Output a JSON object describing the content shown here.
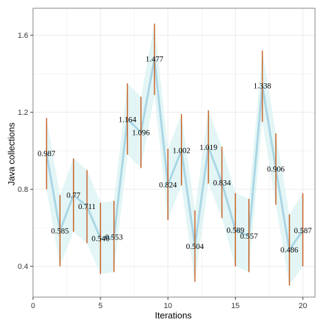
{
  "chart_data": {
    "type": "line",
    "title": "",
    "xlabel": "Iterations",
    "ylabel": "Java collections",
    "xlim": [
      0,
      20.9
    ],
    "ylim": [
      0.24,
      1.74
    ],
    "x_ticks": [
      0,
      5,
      10,
      15,
      20
    ],
    "y_ticks": [
      0.4,
      0.8,
      1.2,
      1.6
    ],
    "y_tick_labels": [
      "0.4",
      "0.8",
      "1.2",
      "1.6"
    ],
    "grid": true,
    "legend": "none",
    "colors": {
      "line": "#a9d6e5",
      "ribbon": "#d9f1f2",
      "error_bar": "#c8642a",
      "grid": "#e8e8e8",
      "frame": "#7f7f7f"
    },
    "series": [
      {
        "x": [
          1,
          2,
          3,
          4,
          5,
          6,
          7,
          8,
          9,
          10,
          11,
          12,
          13,
          14,
          15,
          16,
          17,
          18,
          19,
          20
        ],
        "values": [
          0.987,
          0.585,
          0.77,
          0.711,
          0.546,
          0.553,
          1.164,
          1.096,
          1.477,
          0.824,
          1.002,
          0.504,
          1.019,
          0.834,
          0.589,
          0.557,
          1.338,
          0.906,
          0.486,
          0.587
        ],
        "labels": [
          "0.987",
          "0.585",
          "0.77",
          "0.711",
          "0.546",
          "0.553",
          "1.164",
          "1.096",
          "1.477",
          "0.824",
          "1.002",
          "0.504",
          "1.019",
          "0.834",
          "0.589",
          "0.557",
          "1.338",
          "0.906",
          "0.486",
          "0.587"
        ],
        "lower": [
          0.8,
          0.4,
          0.58,
          0.52,
          0.36,
          0.37,
          0.98,
          0.91,
          1.29,
          0.64,
          0.82,
          0.32,
          0.83,
          0.65,
          0.4,
          0.37,
          1.15,
          0.72,
          0.3,
          0.4
        ],
        "upper": [
          1.17,
          0.77,
          0.96,
          0.9,
          0.73,
          0.74,
          1.35,
          1.28,
          1.66,
          1.01,
          1.19,
          0.69,
          1.21,
          1.02,
          0.78,
          0.75,
          1.52,
          1.09,
          0.67,
          0.78
        ]
      }
    ]
  }
}
